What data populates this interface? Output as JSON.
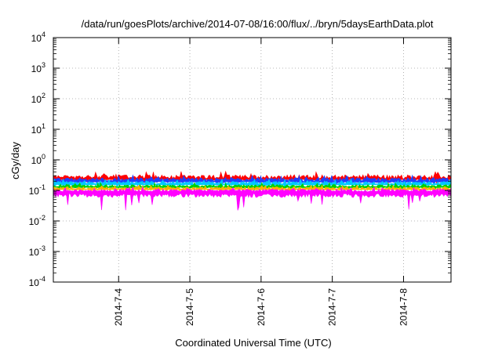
{
  "chart_data": {
    "type": "area",
    "title": "/data/run/goesPlots/archive/2014-07-08/16:00/flux/../bryn/5daysEarthData.plot",
    "xlabel": "Coordinated Universal Time (UTC)",
    "ylabel": "cGy/day",
    "yscale": "log",
    "ylim": [
      0.0001,
      10000
    ],
    "y_ticks": [
      {
        "base": "10",
        "exp": "-4",
        "value": 0.0001
      },
      {
        "base": "10",
        "exp": "-3",
        "value": 0.001
      },
      {
        "base": "10",
        "exp": "-2",
        "value": 0.01
      },
      {
        "base": "10",
        "exp": "-1",
        "value": 0.1
      },
      {
        "base": "10",
        "exp": "0",
        "value": 1
      },
      {
        "base": "10",
        "exp": "1",
        "value": 10
      },
      {
        "base": "10",
        "exp": "2",
        "value": 100
      },
      {
        "base": "10",
        "exp": "3",
        "value": 1000
      },
      {
        "base": "10",
        "exp": "4",
        "value": 10000
      }
    ],
    "xlim": [
      "2014-07-03T02:00",
      "2014-07-08T16:00"
    ],
    "x_ticks": [
      "2014-7-4",
      "2014-7-5",
      "2014-7-6",
      "2014-7-7",
      "2014-7-8"
    ],
    "grid": true,
    "legend": "none",
    "series": [
      {
        "color": "#ff0000",
        "typical": 0.24,
        "band": [
          0.17,
          0.42
        ]
      },
      {
        "color": "#1f3fff",
        "typical": 0.2,
        "band": [
          0.14,
          0.32
        ]
      },
      {
        "color": "#00c8ff",
        "typical": 0.16,
        "band": [
          0.12,
          0.24
        ]
      },
      {
        "color": "#00d000",
        "typical": 0.13,
        "band": [
          0.1,
          0.18
        ]
      },
      {
        "color": "#ffb000",
        "typical": 0.11,
        "band": [
          0.09,
          0.15
        ]
      },
      {
        "color": "#ff00ff",
        "typical": 0.09,
        "band": [
          0.022,
          0.13
        ]
      }
    ]
  }
}
